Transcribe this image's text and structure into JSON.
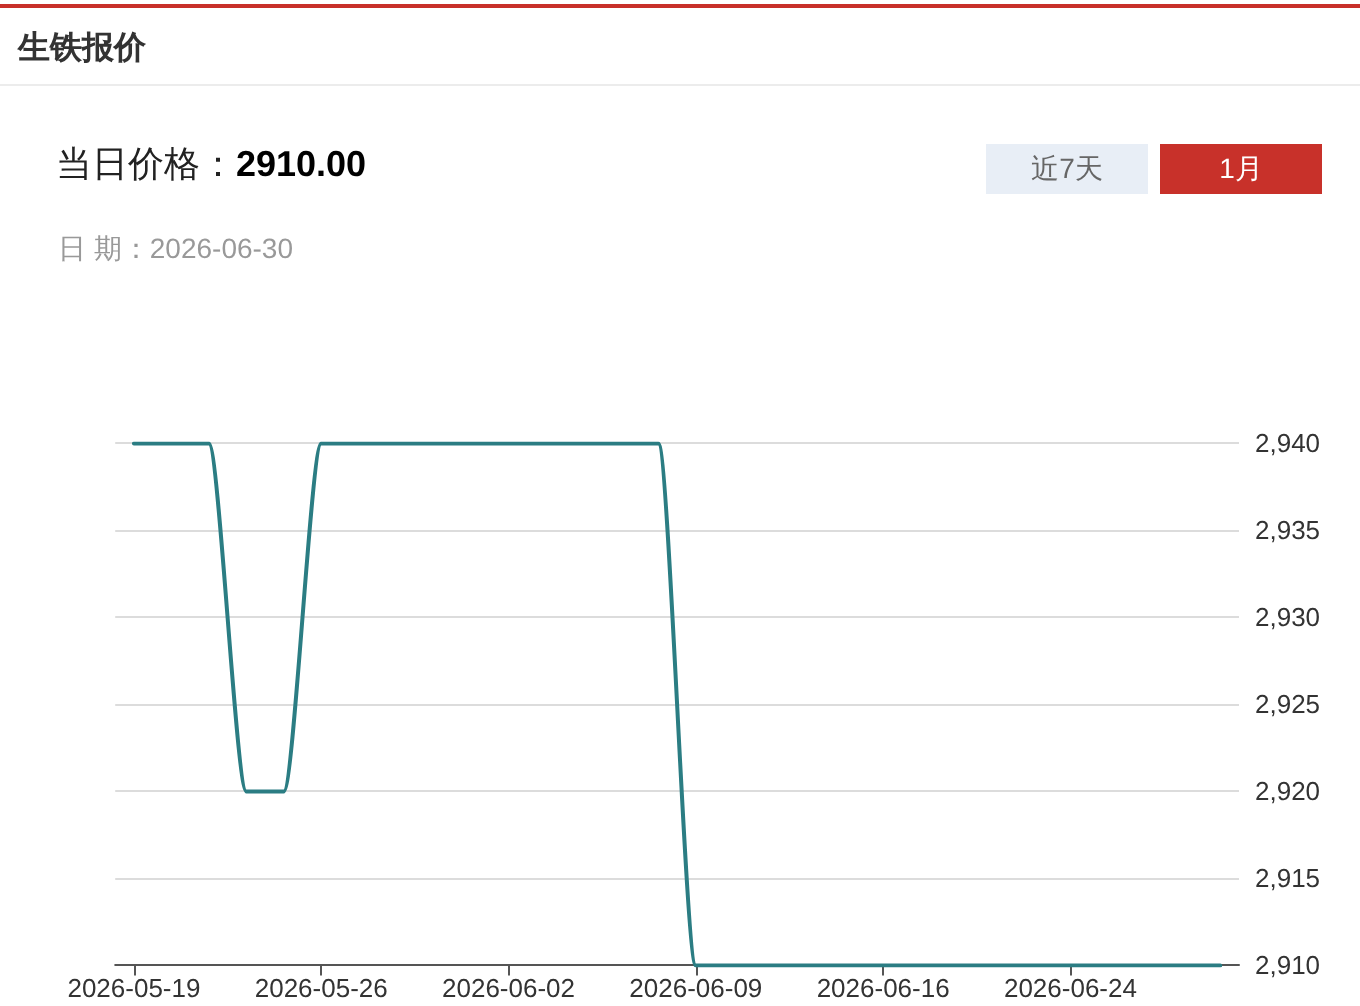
{
  "chart_data": {
    "type": "line",
    "title": "生铁报价",
    "annotations": [
      "当日价格：",
      "2910.00",
      "日 期：2026-06-30",
      "近7天",
      "1月"
    ],
    "categories": [
      "2026-05-19",
      null,
      null,
      null,
      null,
      "2026-05-26",
      null,
      null,
      null,
      null,
      "2026-06-02",
      null,
      null,
      null,
      null,
      "2026-06-09",
      null,
      null,
      null,
      null,
      "2026-06-16",
      null,
      null,
      null,
      null,
      "2026-06-24",
      null,
      null,
      null,
      null
    ],
    "values": [
      2940,
      2940,
      2940,
      2920,
      2920,
      2940,
      2940,
      2940,
      2940,
      2940,
      2940,
      2940,
      2940,
      2940,
      2940,
      2910,
      2910,
      2910,
      2910,
      2910,
      2910,
      2910,
      2910,
      2910,
      2910,
      2910,
      2910,
      2910,
      2910,
      2910
    ],
    "color": "#2b7d83",
    "ylim": [
      2910,
      2940
    ],
    "yticks": [
      {
        "value": 2910,
        "label": "2,910"
      },
      {
        "value": 2915,
        "label": "2,915"
      },
      {
        "value": 2920,
        "label": "2,920"
      },
      {
        "value": 2925,
        "label": "2,925"
      },
      {
        "value": 2930,
        "label": "2,930"
      },
      {
        "value": 2935,
        "label": "2,935"
      },
      {
        "value": 2940,
        "label": "2,940"
      }
    ],
    "grid": "y",
    "marker": "none",
    "line_style": "solid"
  }
}
